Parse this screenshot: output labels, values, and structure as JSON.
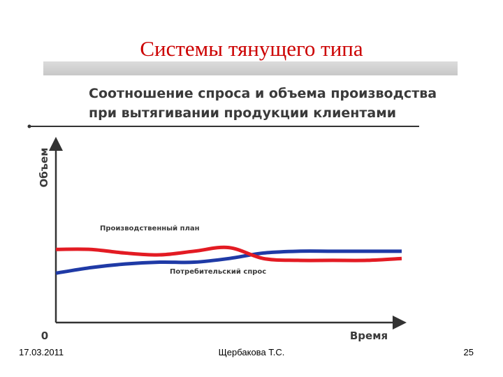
{
  "slide": {
    "title": "Системы тянущего типа",
    "footer_date": "17.03.2011",
    "footer_author": "Щербакова Т.С.",
    "page_number": "25"
  },
  "chart_data": {
    "type": "line",
    "title_lines": [
      "Соотношение спроса и объема производства",
      "при вытягивании продукции клиентами"
    ],
    "ylabel": "Объем",
    "xlabel": "Время",
    "origin_label": "0",
    "x": [
      0,
      1,
      2,
      3,
      4,
      5,
      6,
      7,
      8,
      9,
      10
    ],
    "ylim": [
      0,
      10
    ],
    "series": [
      {
        "name": "Производственный план",
        "color": "#e31b23",
        "values": [
          4.0,
          4.0,
          3.8,
          3.7,
          3.9,
          4.1,
          3.5,
          3.4,
          3.4,
          3.4,
          3.5
        ]
      },
      {
        "name": "Потребительский спрос",
        "color": "#1f3aa6",
        "values": [
          2.7,
          3.0,
          3.2,
          3.3,
          3.3,
          3.5,
          3.8,
          3.9,
          3.9,
          3.9,
          3.9
        ]
      }
    ],
    "grid": false,
    "legend": "inline labels"
  }
}
